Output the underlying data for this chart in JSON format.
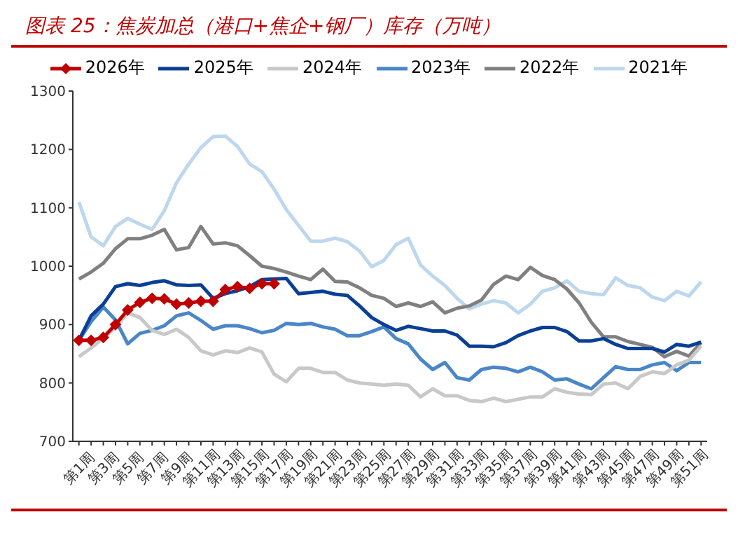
{
  "chart_data": {
    "type": "line",
    "title": "图表 25：焦炭加总（港口+焦企+钢厂）库存（万吨）",
    "categories": [
      "第1周",
      null,
      "第3周",
      null,
      "第5周",
      null,
      "第7周",
      null,
      "第9周",
      null,
      "第11周",
      null,
      "第13周",
      null,
      "第15周",
      null,
      "第17周",
      null,
      "第19周",
      null,
      "第21周",
      null,
      "第23周",
      null,
      "第25周",
      null,
      "第27周",
      null,
      "第29周",
      null,
      "第31周",
      null,
      "第33周",
      null,
      "第35周",
      null,
      "第37周",
      null,
      "第39周",
      null,
      "第41周",
      null,
      "第43周",
      null,
      "第45周",
      null,
      "第47周",
      null,
      "第49周",
      null,
      "第51周",
      null
    ],
    "ylim": [
      700,
      1300
    ],
    "yticks": [
      700,
      800,
      900,
      1000,
      1100,
      1200,
      1300
    ],
    "grid": false,
    "legend": "top",
    "marker": "none",
    "series": [
      {
        "name": "2026年",
        "color": "#c00000",
        "marker": "diamond",
        "values": [
          873,
          873,
          878,
          900,
          925,
          938,
          945,
          944,
          935,
          937,
          940,
          940,
          960,
          965,
          962,
          970,
          970,
          null,
          null,
          null,
          null,
          null,
          null,
          null,
          null,
          null,
          null,
          null,
          null,
          null,
          null,
          null,
          null,
          null,
          null,
          null,
          null,
          null,
          null,
          null,
          null,
          null,
          null,
          null,
          null,
          null,
          null,
          null,
          null,
          null,
          null,
          null
        ]
      },
      {
        "name": "2025年",
        "color": "#0a3f96",
        "values": [
          873,
          915,
          935,
          965,
          970,
          967,
          972,
          975,
          968,
          967,
          968,
          945,
          953,
          958,
          965,
          977,
          978,
          979,
          953,
          955,
          957,
          952,
          950,
          932,
          912,
          900,
          890,
          897,
          893,
          889,
          889,
          882,
          863,
          863,
          862,
          869,
          881,
          889,
          895,
          895,
          888,
          872,
          872,
          876,
          866,
          859,
          859,
          859,
          853,
          866,
          863,
          870
        ]
      },
      {
        "name": "2024年",
        "color": "#c8c8c8",
        "values": [
          845,
          860,
          877,
          895,
          920,
          912,
          890,
          883,
          892,
          878,
          855,
          848,
          855,
          852,
          860,
          853,
          815,
          802,
          825,
          825,
          818,
          818,
          805,
          800,
          798,
          796,
          798,
          796,
          776,
          790,
          778,
          778,
          770,
          768,
          774,
          768,
          772,
          776,
          776,
          790,
          784,
          781,
          780,
          798,
          800,
          790,
          811,
          819,
          816,
          831,
          839,
          863
        ]
      },
      {
        "name": "2023年",
        "color": "#4a86c8",
        "values": [
          873,
          905,
          930,
          908,
          867,
          885,
          890,
          898,
          915,
          920,
          907,
          892,
          898,
          898,
          893,
          886,
          890,
          902,
          900,
          902,
          896,
          892,
          881,
          881,
          888,
          896,
          876,
          867,
          841,
          823,
          835,
          809,
          805,
          823,
          827,
          825,
          819,
          827,
          819,
          805,
          807,
          798,
          790,
          809,
          828,
          823,
          823,
          831,
          835,
          821,
          835,
          835
        ]
      },
      {
        "name": "2022年",
        "color": "#808080",
        "values": [
          978,
          990,
          1005,
          1030,
          1047,
          1047,
          1053,
          1063,
          1028,
          1032,
          1068,
          1038,
          1040,
          1035,
          1018,
          1000,
          996,
          990,
          983,
          977,
          995,
          974,
          973,
          963,
          950,
          945,
          931,
          937,
          931,
          939,
          920,
          928,
          932,
          942,
          969,
          983,
          977,
          998,
          984,
          977,
          961,
          937,
          904,
          879,
          879,
          871,
          866,
          861,
          845,
          854,
          846,
          869
        ]
      },
      {
        "name": "2021年",
        "color": "#bdd7ee",
        "values": [
          1110,
          1050,
          1035,
          1068,
          1082,
          1072,
          1063,
          1095,
          1143,
          1175,
          1203,
          1222,
          1223,
          1205,
          1175,
          1162,
          1132,
          1097,
          1070,
          1043,
          1043,
          1048,
          1042,
          1026,
          999,
          1010,
          1037,
          1048,
          1002,
          983,
          967,
          945,
          927,
          935,
          941,
          937,
          920,
          935,
          957,
          963,
          975,
          957,
          953,
          951,
          980,
          967,
          963,
          947,
          941,
          957,
          949,
          973
        ]
      }
    ]
  }
}
